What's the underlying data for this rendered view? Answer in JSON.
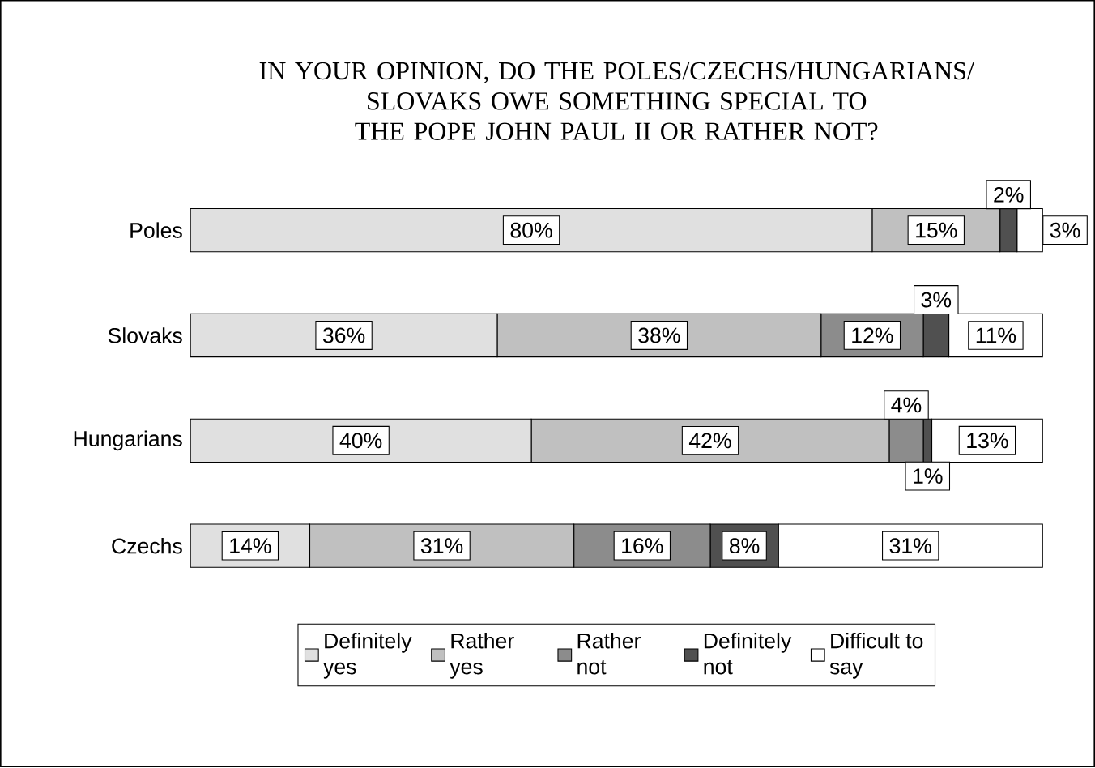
{
  "chart_data": {
    "type": "bar",
    "orientation": "horizontal",
    "stacked": true,
    "title": "IN YOUR OPINION, DO THE POLES/CZECHS/HUNGARIANS/ SLOVAKS OWE SOMETHING SPECIAL TO THE POPE JOHN PAUL II OR RATHER NOT?",
    "categories": [
      "Poles",
      "Slovaks",
      "Hungarians",
      "Czechs"
    ],
    "series": [
      {
        "name": "Definitely yes",
        "color": "#e0e0e0",
        "values": [
          80,
          36,
          40,
          14
        ],
        "value_labels": [
          "80%",
          "36%",
          "40%",
          "14%"
        ]
      },
      {
        "name": "Rather yes",
        "color": "#c0c0c0",
        "values": [
          15,
          38,
          42,
          31
        ],
        "value_labels": [
          "15%",
          "38%",
          "42%",
          "31%"
        ]
      },
      {
        "name": "Rather not",
        "color": "#8c8c8c",
        "values": [
          0,
          12,
          4,
          16
        ],
        "value_labels": [
          null,
          "12%",
          "4%",
          "16%"
        ]
      },
      {
        "name": "Definitely not",
        "color": "#505050",
        "values": [
          2,
          3,
          1,
          8
        ],
        "value_labels": [
          "2%",
          "3%",
          "1%",
          "8%"
        ]
      },
      {
        "name": "Difficult to say",
        "color": "#ffffff",
        "values": [
          3,
          11,
          13,
          31
        ],
        "value_labels": [
          "3%",
          "11%",
          "13%",
          "31%"
        ]
      }
    ],
    "legend": "bottom"
  }
}
